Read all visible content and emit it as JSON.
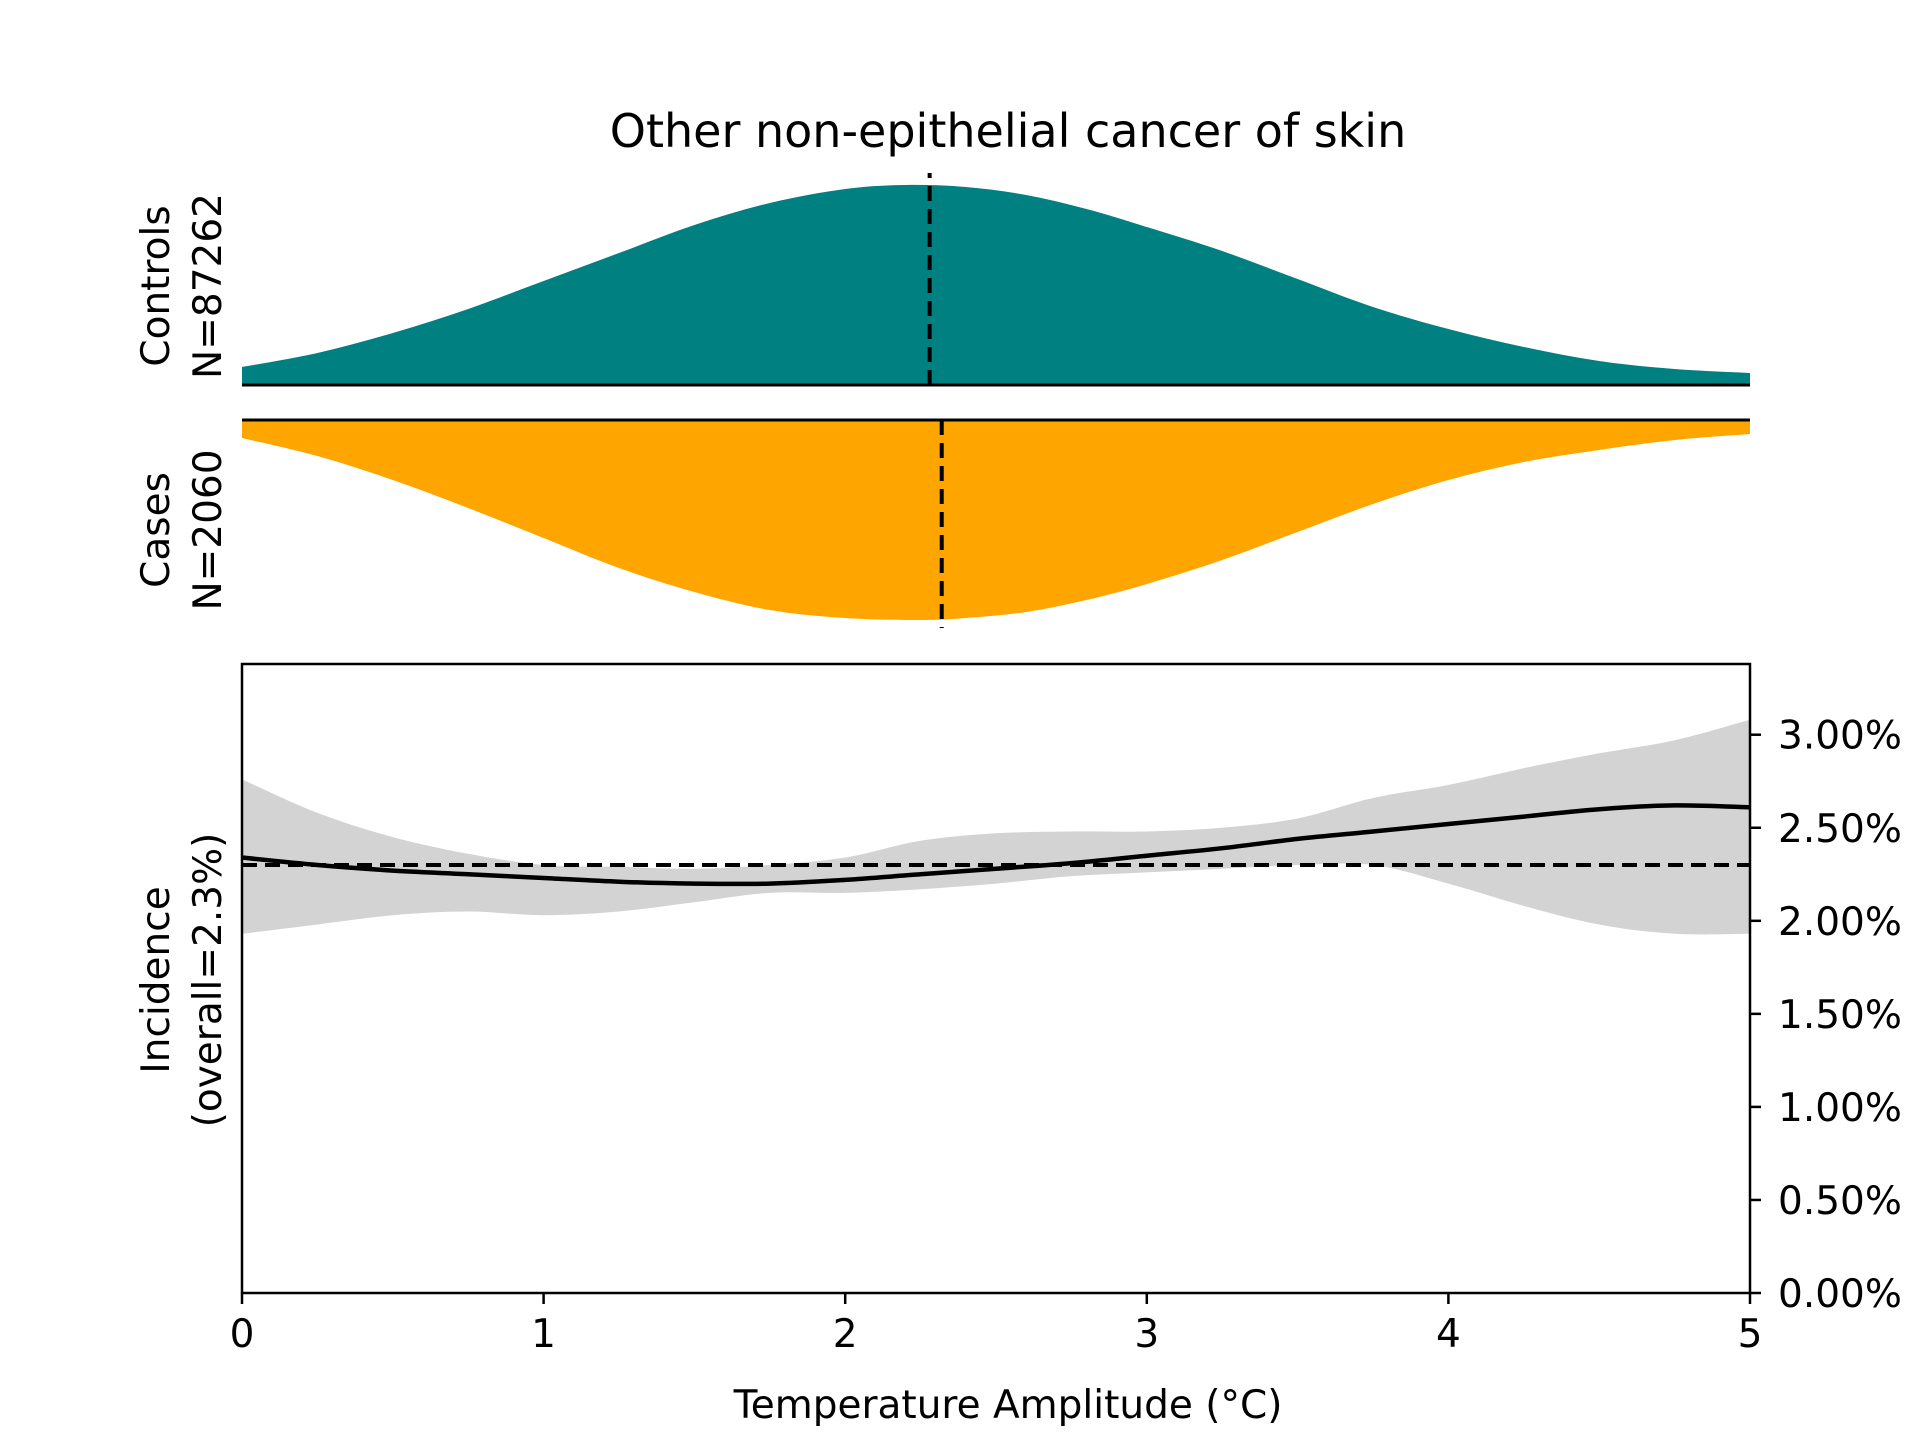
{
  "chart_data": {
    "type": "area",
    "title": "Other non-epithelial cancer of skin",
    "xlabel": "Temperature Amplitude (°C)",
    "xlim": [
      0,
      5
    ],
    "x_ticks": [
      "0",
      "1",
      "2",
      "3",
      "4",
      "5"
    ],
    "colors": {
      "controls": "#008080",
      "cases": "#FFA500",
      "ci_band": "#D3D3D3",
      "line": "#000000"
    },
    "density_panels": [
      {
        "label_line1": "Controls",
        "label_line2": "N=87262",
        "color": "#008080",
        "orientation": "up",
        "median_x": 2.28,
        "x": [
          0,
          0.25,
          0.5,
          0.75,
          1.0,
          1.25,
          1.5,
          1.75,
          2.0,
          2.2,
          2.4,
          2.6,
          2.8,
          3.0,
          3.25,
          3.5,
          3.75,
          4.0,
          4.25,
          4.5,
          4.75,
          5.0
        ],
        "density": [
          0.09,
          0.16,
          0.26,
          0.38,
          0.52,
          0.66,
          0.8,
          0.91,
          0.98,
          1.0,
          0.99,
          0.95,
          0.88,
          0.79,
          0.67,
          0.53,
          0.39,
          0.28,
          0.19,
          0.12,
          0.08,
          0.06
        ]
      },
      {
        "label_line1": "Cases",
        "label_line2": "N=2060",
        "color": "#FFA500",
        "orientation": "down",
        "median_x": 2.32,
        "x": [
          0,
          0.25,
          0.5,
          0.75,
          1.0,
          1.25,
          1.5,
          1.75,
          2.0,
          2.25,
          2.4,
          2.6,
          2.8,
          3.0,
          3.25,
          3.5,
          3.75,
          4.0,
          4.25,
          4.5,
          4.75,
          5.0
        ],
        "density": [
          0.09,
          0.18,
          0.3,
          0.44,
          0.59,
          0.74,
          0.86,
          0.95,
          0.99,
          1.0,
          0.99,
          0.96,
          0.9,
          0.82,
          0.7,
          0.56,
          0.42,
          0.3,
          0.21,
          0.15,
          0.1,
          0.07
        ]
      }
    ],
    "incidence": {
      "ylabel_line1": "Incidence",
      "ylabel_line2": "(overall=2.3%)",
      "ylim": [
        0,
        3.38
      ],
      "y_ticks": [
        0,
        0.5,
        1.0,
        1.5,
        2.0,
        2.5,
        3.0
      ],
      "y_tick_labels": [
        "0.00%",
        "0.50%",
        "1.00%",
        "1.50%",
        "2.00%",
        "2.50%",
        "3.00%"
      ],
      "y_axis_side": "right",
      "overall": 2.3,
      "x": [
        0,
        0.25,
        0.5,
        0.75,
        1.0,
        1.25,
        1.5,
        1.75,
        2.0,
        2.25,
        2.5,
        2.75,
        3.0,
        3.25,
        3.5,
        3.75,
        4.0,
        4.25,
        4.5,
        4.75,
        5.0
      ],
      "y": [
        2.34,
        2.3,
        2.27,
        2.25,
        2.23,
        2.21,
        2.2,
        2.2,
        2.22,
        2.25,
        2.28,
        2.31,
        2.35,
        2.39,
        2.44,
        2.48,
        2.52,
        2.56,
        2.6,
        2.62,
        2.61
      ],
      "lower": [
        1.93,
        1.98,
        2.03,
        2.05,
        2.03,
        2.05,
        2.1,
        2.15,
        2.15,
        2.17,
        2.2,
        2.24,
        2.26,
        2.28,
        2.3,
        2.3,
        2.2,
        2.08,
        1.98,
        1.93,
        1.93
      ],
      "upper": [
        2.76,
        2.58,
        2.45,
        2.36,
        2.3,
        2.29,
        2.28,
        2.3,
        2.34,
        2.43,
        2.47,
        2.48,
        2.48,
        2.5,
        2.55,
        2.66,
        2.73,
        2.82,
        2.9,
        2.97,
        3.08
      ]
    }
  }
}
